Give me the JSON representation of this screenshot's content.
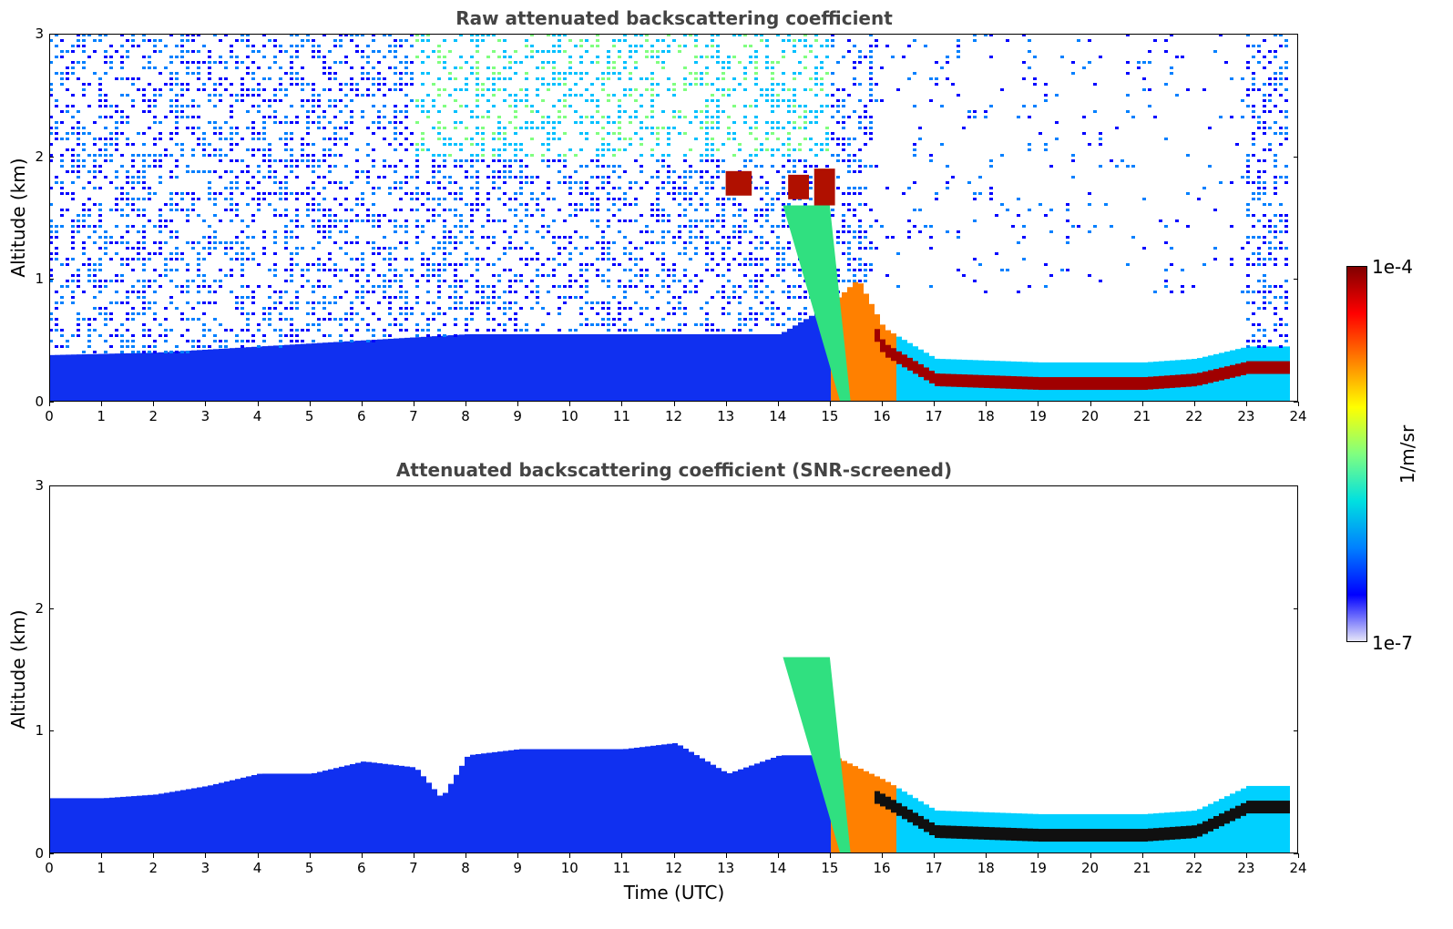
{
  "chart_data": [
    {
      "type": "heatmap",
      "title": "Raw attenuated backscattering coefficient",
      "xlabel": "",
      "ylabel": "Altitude (km)",
      "xlim": [
        0,
        24
      ],
      "ylim": [
        0,
        3
      ],
      "xticks": [
        "0",
        "1",
        "2",
        "3",
        "4",
        "5",
        "6",
        "7",
        "8",
        "9",
        "10",
        "11",
        "12",
        "13",
        "14",
        "15",
        "16",
        "17",
        "18",
        "19",
        "20",
        "21",
        "22",
        "23",
        "24"
      ],
      "yticks": [
        "0",
        "1",
        "2",
        "3"
      ],
      "boundary_layer_top": [
        [
          0,
          0.38
        ],
        [
          2,
          0.4
        ],
        [
          4,
          0.45
        ],
        [
          6,
          0.5
        ],
        [
          8,
          0.55
        ],
        [
          10,
          0.55
        ],
        [
          12,
          0.55
        ],
        [
          14,
          0.55
        ],
        [
          15,
          0.8
        ],
        [
          15.5,
          1.0
        ],
        [
          16,
          0.6
        ],
        [
          17,
          0.35
        ],
        [
          19,
          0.32
        ],
        [
          21,
          0.32
        ],
        [
          22,
          0.35
        ],
        [
          23,
          0.45
        ],
        [
          23.8,
          0.45
        ]
      ],
      "clouds": [
        {
          "x_start": 13.0,
          "x_end": 13.5,
          "alt_bottom": 1.68,
          "alt_top": 1.88
        },
        {
          "x_start": 14.2,
          "x_end": 14.6,
          "alt_bottom": 1.65,
          "alt_top": 1.85
        },
        {
          "x_start": 14.7,
          "x_end": 15.1,
          "alt_bottom": 1.6,
          "alt_top": 1.9
        }
      ],
      "data_end_time": 23.8
    },
    {
      "type": "heatmap",
      "title": "Attenuated backscattering coefficient (SNR-screened)",
      "xlabel": "Time (UTC)",
      "ylabel": "Altitude (km)",
      "xlim": [
        0,
        24
      ],
      "ylim": [
        0,
        3
      ],
      "xticks": [
        "0",
        "1",
        "2",
        "3",
        "4",
        "5",
        "6",
        "7",
        "8",
        "9",
        "10",
        "11",
        "12",
        "13",
        "14",
        "15",
        "16",
        "17",
        "18",
        "19",
        "20",
        "21",
        "22",
        "23",
        "24"
      ],
      "yticks": [
        "0",
        "1",
        "2",
        "3"
      ],
      "aerosol_layer_top": [
        [
          0,
          0.45
        ],
        [
          1,
          0.45
        ],
        [
          2,
          0.48
        ],
        [
          3,
          0.55
        ],
        [
          4,
          0.65
        ],
        [
          5,
          0.65
        ],
        [
          6,
          0.75
        ],
        [
          7,
          0.7
        ],
        [
          7.5,
          0.45
        ],
        [
          8,
          0.8
        ],
        [
          9,
          0.85
        ],
        [
          10,
          0.85
        ],
        [
          11,
          0.85
        ],
        [
          12,
          0.9
        ],
        [
          13,
          0.65
        ],
        [
          14,
          0.8
        ],
        [
          15,
          0.8
        ],
        [
          16,
          0.6
        ],
        [
          17,
          0.35
        ],
        [
          19,
          0.32
        ],
        [
          21,
          0.32
        ],
        [
          22,
          0.35
        ],
        [
          23,
          0.55
        ],
        [
          23.8,
          0.55
        ]
      ],
      "data_end_time": 23.8
    }
  ],
  "colorbar": {
    "label": "1/m/sr",
    "max_label": "1e-4",
    "min_label": "1e-7",
    "colormap": "jet",
    "colors": [
      "#e8e8f8",
      "#0000ff",
      "#0080ff",
      "#00e0e0",
      "#80ff80",
      "#ffff00",
      "#ff8000",
      "#ff0000",
      "#800000"
    ]
  }
}
